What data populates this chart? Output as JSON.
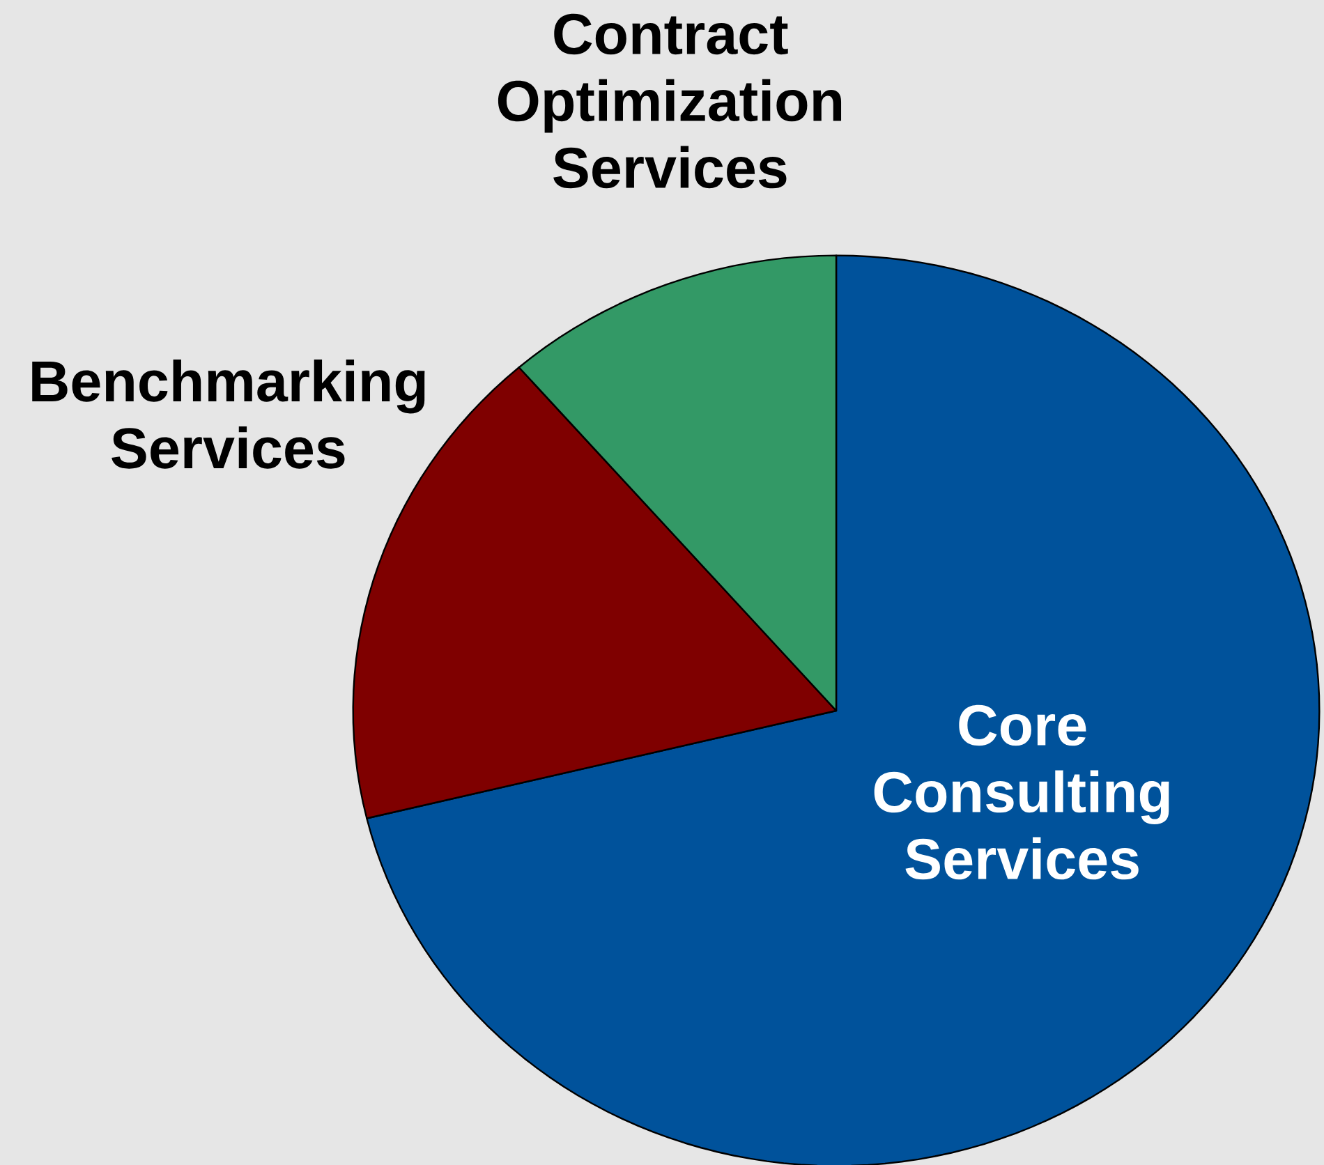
{
  "chart_data": {
    "type": "pie",
    "categories": [
      "Core Consulting Services",
      "Benchmarking Services",
      "Contract Optimization Services"
    ],
    "values": [
      71.2,
      17.4,
      11.4
    ],
    "colors": [
      "#00529b",
      "#7f0000",
      "#339966"
    ]
  }
}
